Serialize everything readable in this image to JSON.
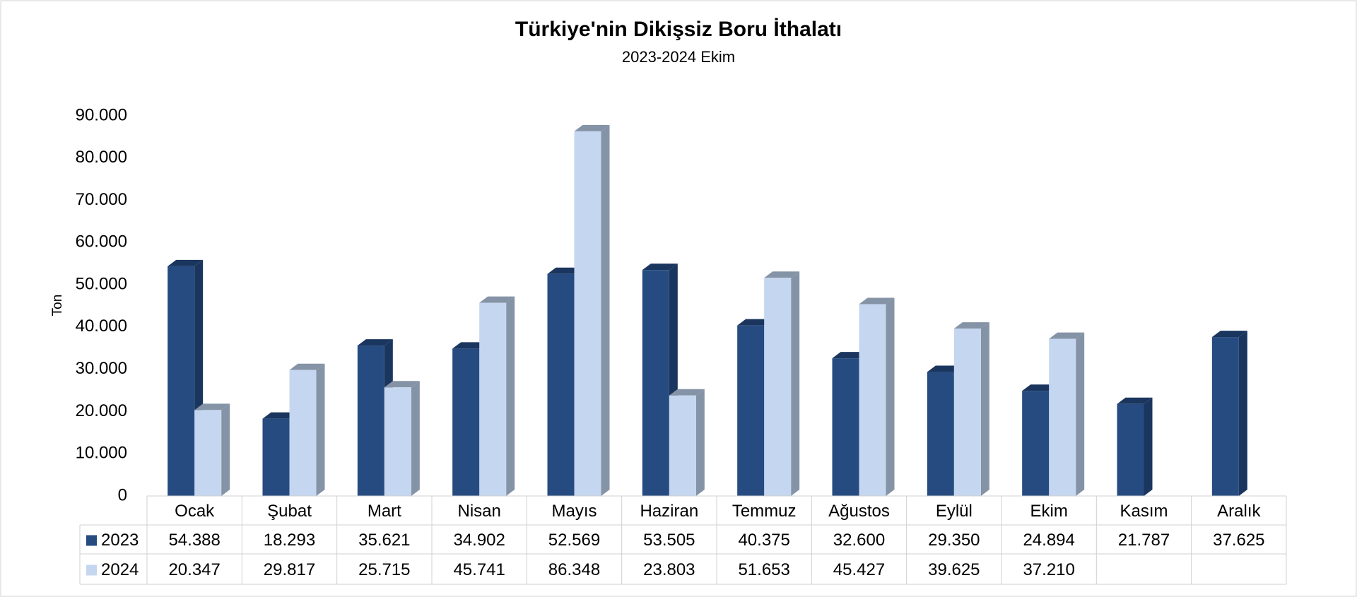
{
  "chart_data": {
    "type": "bar3d",
    "title": "Türkiye'nin Dikişsiz Boru İthalatı",
    "subtitle": "2023-2024 Ekim",
    "y_label": "Ton",
    "categories": [
      "Ocak",
      "Şubat",
      "Mart",
      "Nisan",
      "Mayıs",
      "Haziran",
      "Temmuz",
      "Ağustos",
      "Eylül",
      "Ekim",
      "Kasım",
      "Aralık"
    ],
    "series": [
      {
        "name": "2023",
        "color": "#264b80",
        "side_color": "#1b365e",
        "values": [
          54388,
          18293,
          35621,
          34902,
          52569,
          53505,
          40375,
          32600,
          29350,
          24894,
          21787,
          37625
        ],
        "value_labels": [
          "54.388",
          "18.293",
          "35.621",
          "34.902",
          "52.569",
          "53.505",
          "40.375",
          "32.600",
          "29.350",
          "24.894",
          "21.787",
          "37.625"
        ]
      },
      {
        "name": "2024",
        "color": "#c5d7f0",
        "side_color": "#8593a6",
        "values": [
          20347,
          29817,
          25715,
          45741,
          86348,
          23803,
          51653,
          45427,
          39625,
          37210,
          null,
          null
        ],
        "value_labels": [
          "20.347",
          "29.817",
          "25.715",
          "45.741",
          "86.348",
          "23.803",
          "51.653",
          "45.427",
          "39.625",
          "37.210",
          null,
          null
        ]
      }
    ],
    "ylim": [
      0,
      90000
    ],
    "yticks": [
      0,
      {
        "value": 10000,
        "label": "10.000"
      },
      {
        "value": 20000,
        "label": "20.000"
      },
      {
        "value": 30000,
        "label": "30.000"
      },
      {
        "value": 40000,
        "label": "40.000"
      },
      {
        "value": 50000,
        "label": "50.000"
      },
      {
        "value": 60000,
        "label": "60.000"
      },
      {
        "value": 70000,
        "label": "70.000"
      },
      {
        "value": 80000,
        "label": "80.000"
      },
      {
        "value": 90000,
        "label": "90.000"
      }
    ],
    "data_table": true
  }
}
